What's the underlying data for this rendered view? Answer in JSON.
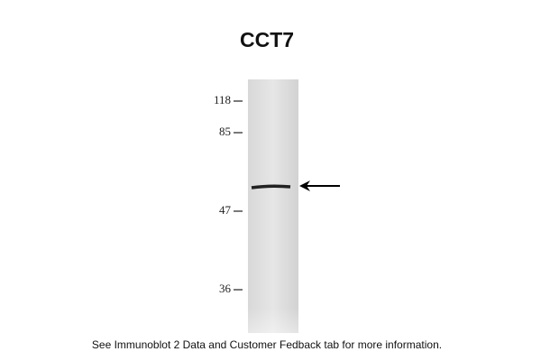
{
  "title": "CCT7",
  "markers": [
    "118",
    "85",
    "47",
    "36"
  ],
  "caption": "See Immunoblot 2 Data and Customer Fedback tab for more information."
}
